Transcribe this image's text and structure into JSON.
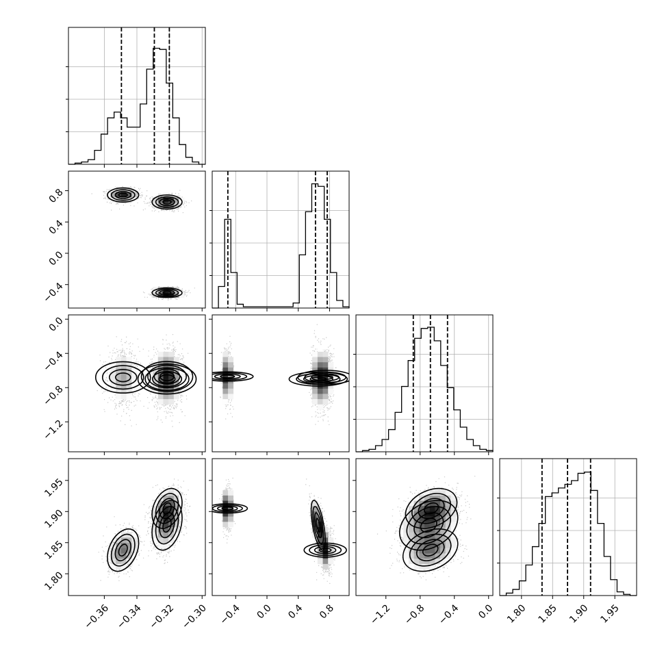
{
  "chart_data": {
    "type": "corner",
    "grid": true,
    "params": [
      {
        "range": [
          -0.382,
          -0.298
        ],
        "ticks": [
          -0.36,
          -0.34,
          -0.32,
          -0.3
        ],
        "tick_labels": [
          "−0.36",
          "−0.34",
          "−0.32",
          "−0.30"
        ],
        "quantiles": [
          -0.3495,
          -0.3293,
          -0.3201
        ],
        "hist": [
          0,
          1,
          2,
          4,
          12,
          26,
          40,
          45,
          40,
          32,
          32,
          52,
          82,
          100,
          99,
          70,
          40,
          17,
          6,
          2,
          0
        ],
        "hist_max": 118
      },
      {
        "range": [
          -0.7,
          1.05
        ],
        "ticks": [
          -0.4,
          0.0,
          0.4,
          0.8
        ],
        "tick_labels": [
          "−0.4",
          "0.0",
          "0.4",
          "0.8"
        ],
        "quantiles": [
          -0.5,
          0.62,
          0.77
        ],
        "hist": [
          0,
          17,
          70,
          28,
          3,
          1,
          1,
          1,
          1,
          1,
          1,
          1,
          1,
          4,
          42,
          76,
          98,
          96,
          70,
          28,
          6,
          1
        ],
        "hist_max": 108
      },
      {
        "range": [
          -1.55,
          0.05
        ],
        "ticks": [
          -1.2,
          -0.8,
          -0.4,
          0.0
        ],
        "tick_labels": [
          "−1.2",
          "−0.8",
          "−0.4",
          "0.0"
        ],
        "quantiles": [
          -0.88,
          -0.68,
          -0.48
        ],
        "hist": [
          0,
          1,
          2,
          5,
          10,
          18,
          32,
          53,
          74,
          92,
          100,
          101,
          90,
          70,
          52,
          34,
          20,
          10,
          5,
          2,
          1
        ],
        "hist_max": 111
      },
      {
        "range": [
          1.765,
          1.985
        ],
        "ticks": [
          1.8,
          1.85,
          1.9,
          1.95
        ],
        "tick_labels": [
          "1.80",
          "1.85",
          "1.90",
          "1.95"
        ],
        "quantiles": [
          1.833,
          1.874,
          1.911
        ],
        "hist": [
          0,
          2,
          5,
          12,
          25,
          40,
          59,
          81,
          84,
          88,
          91,
          94,
          100,
          101,
          86,
          59,
          32,
          13,
          3,
          1,
          0
        ],
        "hist_max": 112
      }
    ],
    "modes": [
      {
        "w": 0.32,
        "mu": [
          -0.3485,
          0.745,
          -0.68,
          1.838
        ],
        "sd": [
          0.0048,
          0.045,
          0.16,
          0.017
        ],
        "corr01": 0,
        "corr02": 0,
        "corr03": 0.35,
        "corr12": 0,
        "corr13": 0,
        "corr23": 0.3
      },
      {
        "w": 0.36,
        "mu": [
          -0.3215,
          0.655,
          -0.7,
          1.878
        ],
        "sd": [
          0.0046,
          0.045,
          0.17,
          0.02
        ],
        "corr01": 0,
        "corr02": 0,
        "corr03": 0.3,
        "corr12": 0,
        "corr13": -0.6,
        "corr23": 0.3
      },
      {
        "w": 0.32,
        "mu": [
          -0.3215,
          -0.505,
          -0.67,
          1.905
        ],
        "sd": [
          0.0046,
          0.03,
          0.15,
          0.016
        ],
        "corr01": 0,
        "corr02": 0,
        "corr03": 0.3,
        "corr12": 0,
        "corr13": 0,
        "corr23": 0.3
      }
    ]
  }
}
